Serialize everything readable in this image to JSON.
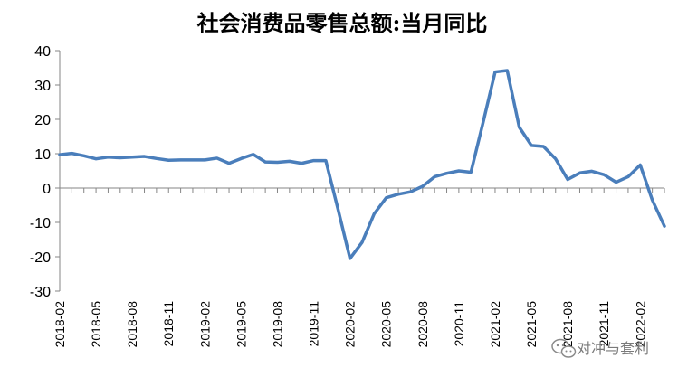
{
  "chart_data": {
    "type": "line",
    "title": "社会消费品零售总额:当月同比",
    "ylim": [
      -30,
      40
    ],
    "yticks": [
      40,
      30,
      20,
      10,
      0,
      -10,
      -20,
      -30
    ],
    "grid": false,
    "legend": "none",
    "series_color": "#4a7ebb",
    "x": [
      "2018-02",
      "2018-03",
      "2018-04",
      "2018-05",
      "2018-06",
      "2018-07",
      "2018-08",
      "2018-09",
      "2018-10",
      "2018-11",
      "2018-12",
      "2019-01",
      "2019-02",
      "2019-03",
      "2019-04",
      "2019-05",
      "2019-06",
      "2019-07",
      "2019-08",
      "2019-09",
      "2019-10",
      "2019-11",
      "2019-12",
      "2020-01",
      "2020-02",
      "2020-03",
      "2020-04",
      "2020-05",
      "2020-06",
      "2020-07",
      "2020-08",
      "2020-09",
      "2020-10",
      "2020-11",
      "2020-12",
      "2021-01",
      "2021-02",
      "2021-03",
      "2021-04",
      "2021-05",
      "2021-06",
      "2021-07",
      "2021-08",
      "2021-09",
      "2021-10",
      "2021-11",
      "2021-12",
      "2022-01",
      "2022-02",
      "2022-03",
      "2022-04"
    ],
    "xtick_labels": [
      "2018-02",
      "2018-05",
      "2018-08",
      "2018-11",
      "2019-02",
      "2019-05",
      "2019-08",
      "2019-11",
      "2020-02",
      "2020-05",
      "2020-08",
      "2020-11",
      "2021-02",
      "2021-05",
      "2021-08",
      "2021-11",
      "2022-02"
    ],
    "series": [
      {
        "values": [
          9.7,
          10.1,
          9.4,
          8.5,
          9.0,
          8.8,
          9.0,
          9.2,
          8.6,
          8.1,
          8.2,
          8.2,
          8.2,
          8.7,
          7.2,
          8.6,
          9.8,
          7.6,
          7.5,
          7.8,
          7.2,
          8.0,
          8.0,
          -6.0,
          -20.5,
          -15.8,
          -7.5,
          -2.8,
          -1.8,
          -1.1,
          0.5,
          3.3,
          4.3,
          5.0,
          4.6,
          19.0,
          33.8,
          34.2,
          17.7,
          12.4,
          12.1,
          8.5,
          2.5,
          4.4,
          4.9,
          3.9,
          1.7,
          3.3,
          6.7,
          -3.5,
          -11.1
        ]
      }
    ]
  },
  "watermark": {
    "text": "对冲与套利",
    "icon": "wechat-icon"
  }
}
